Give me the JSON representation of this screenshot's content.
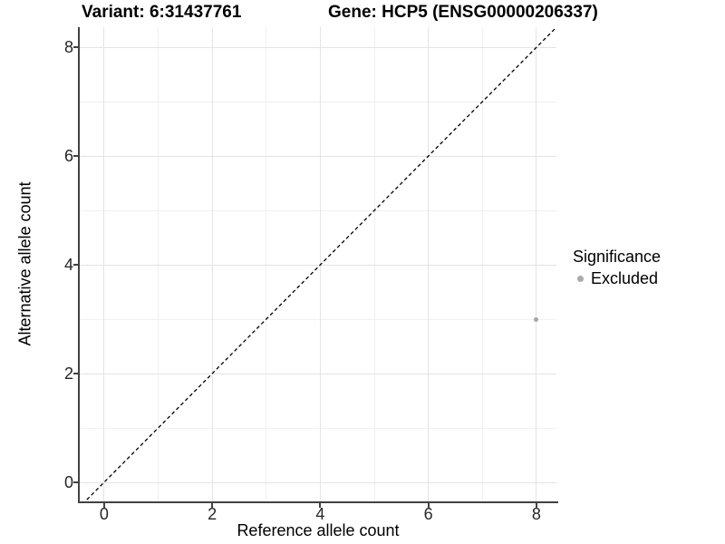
{
  "chart_data": {
    "type": "scatter",
    "title_left": "Variant: 6:31437761",
    "title_right": "Gene: HCP5 (ENSG00000206337)",
    "xlabel": "Reference allele count",
    "ylabel": "Alternative allele count",
    "xlim": [
      -0.45,
      8.37
    ],
    "ylim": [
      -0.35,
      8.37
    ],
    "x_ticks": [
      0,
      2,
      4,
      6,
      8
    ],
    "y_ticks": [
      0,
      2,
      4,
      6,
      8
    ],
    "grid_minor_x": [
      1,
      3,
      5,
      7
    ],
    "grid_minor_y": [
      1,
      3,
      5,
      7
    ],
    "grid": "on",
    "identity_line": {
      "style": "dashed",
      "slope": 1,
      "intercept": 0
    },
    "series": [
      {
        "name": "Excluded",
        "color": "#a6a6a6",
        "points": [
          {
            "x": 8,
            "y": 3
          }
        ]
      }
    ],
    "legend": {
      "position": "right",
      "title": "Significance",
      "items": [
        {
          "label": "Excluded",
          "color": "#aaaaaa"
        }
      ]
    }
  },
  "colors": {
    "background": "#ffffff",
    "axis": "#424242",
    "grid_major": "#e4e4e4",
    "grid_minor": "#f0f0f0",
    "identity_line": "#000000",
    "excluded_point": "#a6a6a6"
  }
}
